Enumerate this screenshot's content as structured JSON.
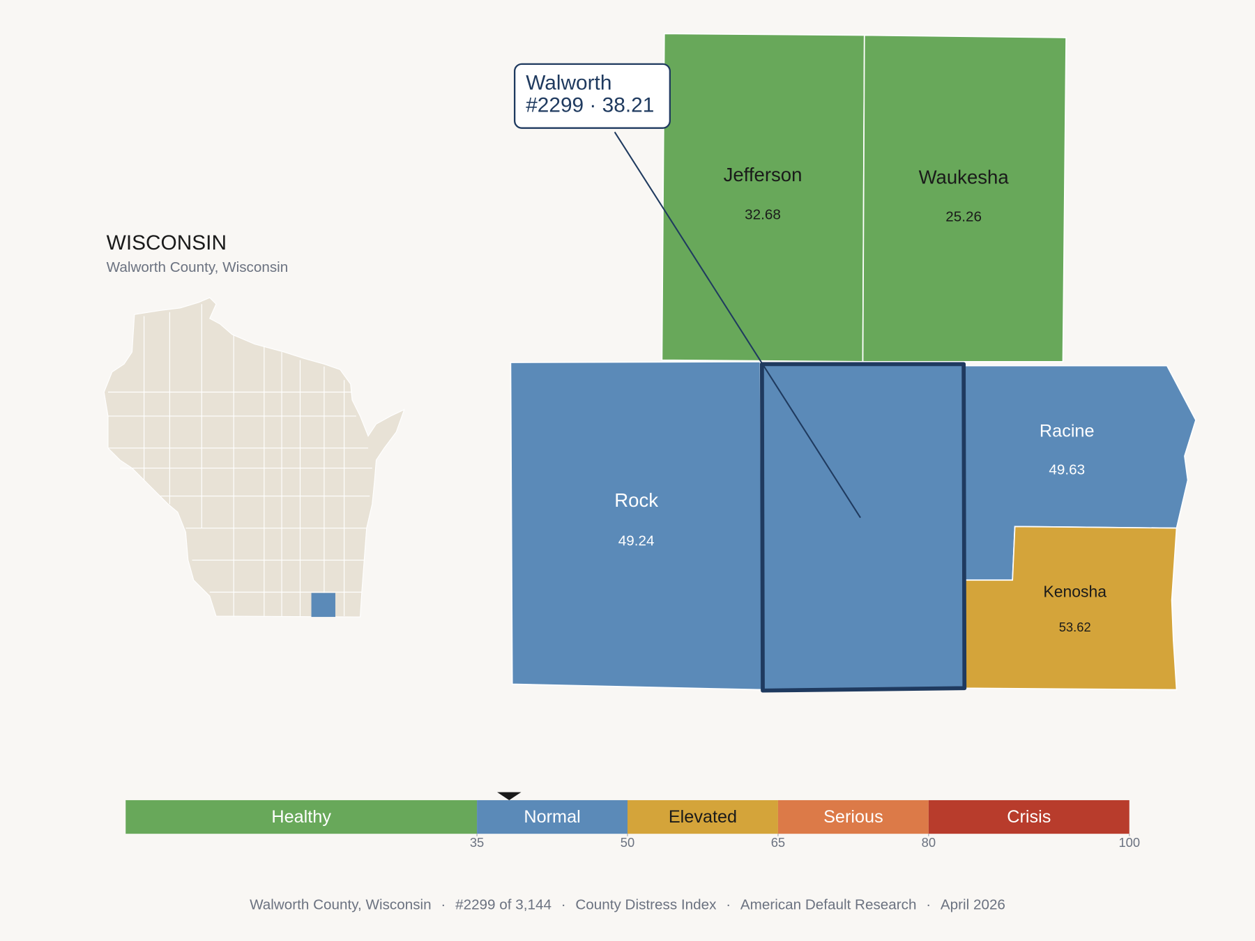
{
  "header": {
    "title": "WISCONSIN",
    "subtitle": "Walworth County, Wisconsin"
  },
  "callout": {
    "name": "Walworth",
    "detail": "#2299 · 38.21",
    "score": 38.21
  },
  "counties": [
    {
      "name": "Jefferson",
      "value": 32.68
    },
    {
      "name": "Waukesha",
      "value": 25.26
    },
    {
      "name": "Rock",
      "value": 49.24
    },
    {
      "name": "Walworth",
      "value": 38.21
    },
    {
      "name": "Racine",
      "value": 49.63
    },
    {
      "name": "Kenosha",
      "value": 53.62
    }
  ],
  "legend": {
    "range": [
      0,
      100
    ],
    "segments": [
      {
        "label": "Healthy",
        "color": "#68a85a"
      },
      {
        "label": "Normal",
        "color": "#5b8ab8"
      },
      {
        "label": "Elevated",
        "color": "#d4a43a"
      },
      {
        "label": "Serious",
        "color": "#dc7a48"
      },
      {
        "label": "Crisis",
        "color": "#b83c2c"
      }
    ],
    "ticks": [
      35,
      50,
      65,
      80,
      100
    ]
  },
  "footer": {
    "items": [
      "Walworth County, Wisconsin",
      "#2299 of 3,144",
      "County Distress Index",
      "American Default Research",
      "April 2026"
    ],
    "separator": "·"
  }
}
